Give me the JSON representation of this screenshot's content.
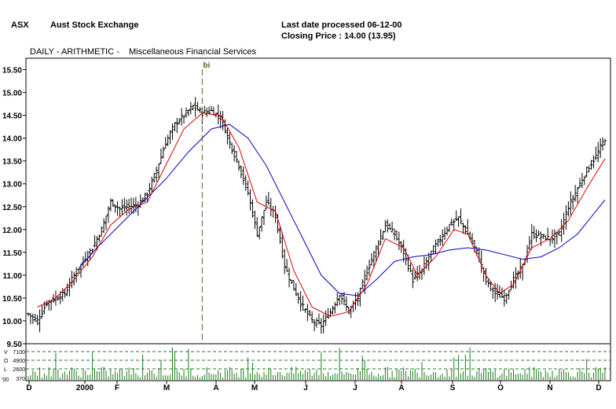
{
  "header": {
    "exchange_code": "ASX",
    "exchange_name": "Aust Stock Exchange",
    "last_date": "Last date processed 06-12-00",
    "closing_price": "Closing Price : 14.00  (13.95)"
  },
  "chart_title": {
    "mode": "DAILY - ARITHMETIC -",
    "security": "Miscellaneous Financial Services"
  },
  "colors": {
    "price_bars": "#000000",
    "short_ma": "#e00000",
    "long_ma": "#0000d0",
    "marker": "#4a6a1a",
    "volume": "#1f7a1f",
    "volume_grid": "#2a7a2a"
  },
  "chart_data": {
    "type": "line",
    "marker_label": "bi",
    "y_ticks": [
      "15.50",
      "15.00",
      "14.50",
      "14.00",
      "13.50",
      "13.00",
      "12.50",
      "12.00",
      "11.50",
      "11.00",
      "10.50",
      "10.00",
      "9.50"
    ],
    "ylim": [
      9.5,
      15.75
    ],
    "x_tick_labels": [
      "D",
      "2000",
      "F",
      "M",
      "A",
      "M",
      "J",
      "J",
      "A",
      "S",
      "O",
      "N",
      "D"
    ],
    "volume_scale": {
      "unit": "'00",
      "ticks": [
        "7100",
        "4900",
        "2600",
        "370"
      ],
      "side_letters": [
        "V",
        "O",
        "L"
      ]
    },
    "price_series": [
      {
        "x": 0,
        "close": 10.15
      },
      {
        "x": 4,
        "close": 10.0
      },
      {
        "x": 8,
        "close": 10.4
      },
      {
        "x": 12,
        "close": 10.5
      },
      {
        "x": 16,
        "close": 10.6
      },
      {
        "x": 20,
        "close": 11.0
      },
      {
        "x": 24,
        "close": 11.3
      },
      {
        "x": 28,
        "close": 11.6
      },
      {
        "x": 32,
        "close": 12.0
      },
      {
        "x": 36,
        "close": 12.6
      },
      {
        "x": 40,
        "close": 12.45
      },
      {
        "x": 44,
        "close": 12.5
      },
      {
        "x": 48,
        "close": 12.55
      },
      {
        "x": 52,
        "close": 12.8
      },
      {
        "x": 56,
        "close": 13.3
      },
      {
        "x": 60,
        "close": 13.9
      },
      {
        "x": 64,
        "close": 14.3
      },
      {
        "x": 68,
        "close": 14.5
      },
      {
        "x": 72,
        "close": 14.7
      },
      {
        "x": 76,
        "close": 14.55
      },
      {
        "x": 80,
        "close": 14.6
      },
      {
        "x": 84,
        "close": 14.45
      },
      {
        "x": 88,
        "close": 13.9
      },
      {
        "x": 92,
        "close": 13.4
      },
      {
        "x": 96,
        "close": 12.8
      },
      {
        "x": 100,
        "close": 11.9
      },
      {
        "x": 104,
        "close": 12.6
      },
      {
        "x": 108,
        "close": 12.3
      },
      {
        "x": 112,
        "close": 11.2
      },
      {
        "x": 116,
        "close": 10.7
      },
      {
        "x": 120,
        "close": 10.3
      },
      {
        "x": 124,
        "close": 10.0
      },
      {
        "x": 128,
        "close": 9.9
      },
      {
        "x": 132,
        "close": 10.2
      },
      {
        "x": 136,
        "close": 10.6
      },
      {
        "x": 140,
        "close": 10.2
      },
      {
        "x": 144,
        "close": 10.5
      },
      {
        "x": 148,
        "close": 11.1
      },
      {
        "x": 152,
        "close": 11.6
      },
      {
        "x": 156,
        "close": 12.1
      },
      {
        "x": 160,
        "close": 11.9
      },
      {
        "x": 164,
        "close": 11.5
      },
      {
        "x": 168,
        "close": 10.9
      },
      {
        "x": 172,
        "close": 11.1
      },
      {
        "x": 176,
        "close": 11.5
      },
      {
        "x": 180,
        "close": 11.8
      },
      {
        "x": 184,
        "close": 12.1
      },
      {
        "x": 188,
        "close": 12.25
      },
      {
        "x": 192,
        "close": 11.9
      },
      {
        "x": 196,
        "close": 11.5
      },
      {
        "x": 200,
        "close": 10.9
      },
      {
        "x": 204,
        "close": 10.6
      },
      {
        "x": 208,
        "close": 10.5
      },
      {
        "x": 212,
        "close": 10.9
      },
      {
        "x": 216,
        "close": 11.2
      },
      {
        "x": 220,
        "close": 11.9
      },
      {
        "x": 224,
        "close": 11.85
      },
      {
        "x": 228,
        "close": 11.8
      },
      {
        "x": 232,
        "close": 11.9
      },
      {
        "x": 236,
        "close": 12.5
      },
      {
        "x": 240,
        "close": 12.9
      },
      {
        "x": 244,
        "close": 13.3
      },
      {
        "x": 248,
        "close": 13.6
      },
      {
        "x": 252,
        "close": 14.0
      }
    ],
    "short_ma": [
      {
        "x": 4,
        "y": 10.3
      },
      {
        "x": 12,
        "y": 10.5
      },
      {
        "x": 20,
        "y": 10.9
      },
      {
        "x": 28,
        "y": 11.4
      },
      {
        "x": 36,
        "y": 12.1
      },
      {
        "x": 44,
        "y": 12.45
      },
      {
        "x": 52,
        "y": 12.6
      },
      {
        "x": 60,
        "y": 13.4
      },
      {
        "x": 68,
        "y": 14.2
      },
      {
        "x": 76,
        "y": 14.55
      },
      {
        "x": 84,
        "y": 14.5
      },
      {
        "x": 92,
        "y": 13.8
      },
      {
        "x": 100,
        "y": 12.6
      },
      {
        "x": 108,
        "y": 12.4
      },
      {
        "x": 116,
        "y": 11.1
      },
      {
        "x": 124,
        "y": 10.3
      },
      {
        "x": 132,
        "y": 10.1
      },
      {
        "x": 140,
        "y": 10.2
      },
      {
        "x": 148,
        "y": 10.8
      },
      {
        "x": 156,
        "y": 11.8
      },
      {
        "x": 164,
        "y": 11.6
      },
      {
        "x": 170,
        "y": 11.0
      },
      {
        "x": 178,
        "y": 11.4
      },
      {
        "x": 186,
        "y": 12.0
      },
      {
        "x": 192,
        "y": 11.9
      },
      {
        "x": 200,
        "y": 11.0
      },
      {
        "x": 206,
        "y": 10.6
      },
      {
        "x": 212,
        "y": 10.8
      },
      {
        "x": 220,
        "y": 11.6
      },
      {
        "x": 228,
        "y": 11.8
      },
      {
        "x": 236,
        "y": 12.2
      },
      {
        "x": 244,
        "y": 12.9
      },
      {
        "x": 252,
        "y": 13.55
      }
    ],
    "long_ma": [
      {
        "x": 22,
        "y": 11.15
      },
      {
        "x": 30,
        "y": 11.6
      },
      {
        "x": 40,
        "y": 12.1
      },
      {
        "x": 50,
        "y": 12.6
      },
      {
        "x": 60,
        "y": 13.1
      },
      {
        "x": 70,
        "y": 13.7
      },
      {
        "x": 80,
        "y": 14.2
      },
      {
        "x": 88,
        "y": 14.3
      },
      {
        "x": 96,
        "y": 14.0
      },
      {
        "x": 104,
        "y": 13.4
      },
      {
        "x": 112,
        "y": 12.6
      },
      {
        "x": 120,
        "y": 11.8
      },
      {
        "x": 128,
        "y": 11.0
      },
      {
        "x": 136,
        "y": 10.6
      },
      {
        "x": 144,
        "y": 10.55
      },
      {
        "x": 152,
        "y": 10.9
      },
      {
        "x": 160,
        "y": 11.3
      },
      {
        "x": 168,
        "y": 11.4
      },
      {
        "x": 176,
        "y": 11.45
      },
      {
        "x": 184,
        "y": 11.55
      },
      {
        "x": 192,
        "y": 11.6
      },
      {
        "x": 200,
        "y": 11.55
      },
      {
        "x": 208,
        "y": 11.45
      },
      {
        "x": 216,
        "y": 11.35
      },
      {
        "x": 224,
        "y": 11.4
      },
      {
        "x": 232,
        "y": 11.6
      },
      {
        "x": 240,
        "y": 11.9
      },
      {
        "x": 248,
        "y": 12.4
      },
      {
        "x": 252,
        "y": 12.65
      }
    ]
  }
}
